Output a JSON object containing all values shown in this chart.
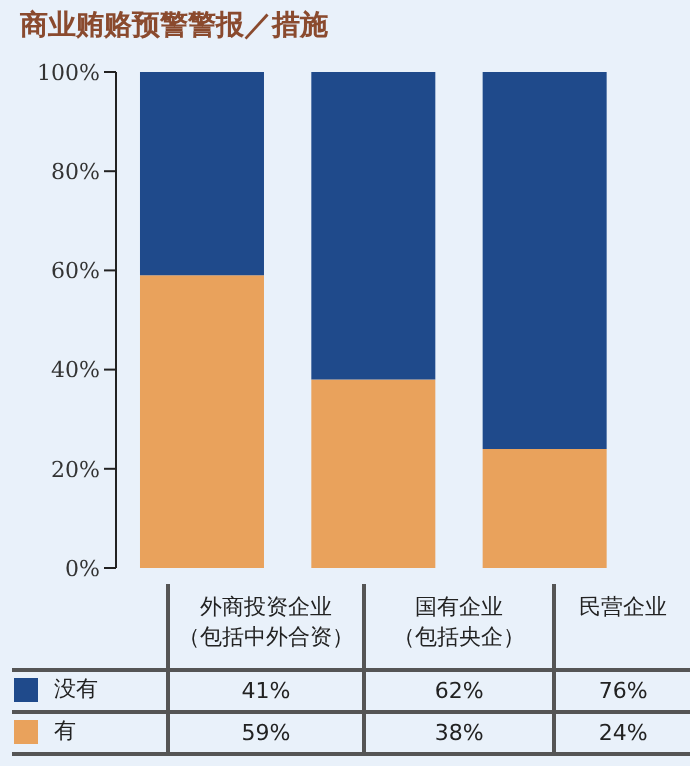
{
  "chart_data": {
    "type": "bar",
    "title": "商业贿赂预警警报／措施",
    "categories": [
      "外商投资企业（包括中外合资）",
      "国有企业（包括央企）",
      "民营企业"
    ],
    "stacked": true,
    "series": [
      {
        "name": "有",
        "color": "#e9a25c",
        "values": [
          59,
          38,
          24
        ],
        "value_labels": [
          "59%",
          "38%",
          "24%"
        ]
      },
      {
        "name": "没有",
        "color": "#1f4a8b",
        "values": [
          41,
          62,
          76
        ],
        "value_labels": [
          "41%",
          "62%",
          "76%"
        ]
      }
    ],
    "ylim": [
      0,
      100
    ],
    "yticks": [
      {
        "value": 0,
        "label": "0%"
      },
      {
        "value": 20,
        "label": "20%"
      },
      {
        "value": 40,
        "label": "40%"
      },
      {
        "value": 60,
        "label": "60%"
      },
      {
        "value": 80,
        "label": "80%"
      },
      {
        "value": 100,
        "label": "100%"
      }
    ],
    "tick_labels": "y",
    "grid": false,
    "legend": "bottom"
  }
}
